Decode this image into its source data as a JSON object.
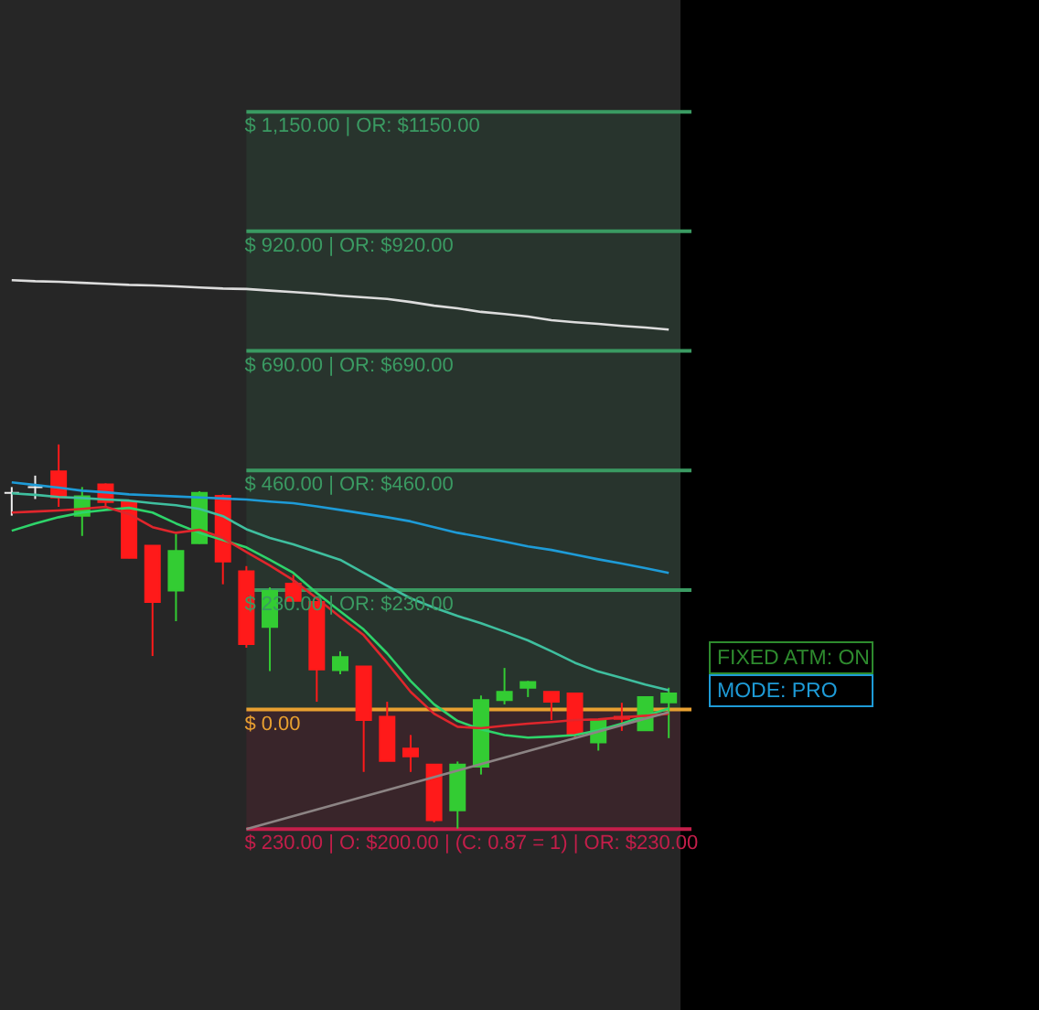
{
  "chart_data": {
    "type": "candlestick",
    "ylim": [
      -578,
      1365
    ],
    "categories": [
      null,
      null,
      null,
      null,
      null,
      null,
      null,
      null,
      null,
      null,
      null,
      null,
      null,
      null,
      null,
      null,
      null,
      null,
      null,
      null,
      null,
      null,
      null,
      null,
      null,
      null,
      null,
      null,
      null
    ],
    "ohlc": [
      [
        417,
        428,
        373,
        417
      ],
      [
        428,
        450,
        405,
        428
      ],
      [
        458,
        510,
        390,
        408
      ],
      [
        373,
        428,
        334,
        410
      ],
      [
        433,
        435,
        391,
        399
      ],
      [
        400,
        404,
        291,
        292
      ],
      [
        315,
        316,
        103,
        207
      ],
      [
        229,
        338,
        170,
        305
      ],
      [
        320,
        420,
        319,
        417
      ],
      [
        411,
        414,
        241,
        285
      ],
      [
        266,
        276,
        119,
        126
      ],
      [
        159,
        235,
        74,
        228
      ],
      [
        242,
        259,
        209,
        209
      ],
      [
        207,
        207,
        15,
        77
      ],
      [
        76,
        112,
        68,
        101
      ],
      [
        83,
        83,
        -120,
        -20
      ],
      [
        -14,
        15,
        -99,
        -99
      ],
      [
        -75,
        -49,
        -120,
        -90
      ],
      [
        -106,
        -106,
        -217,
        -213
      ],
      [
        -194,
        -100,
        -229,
        -106
      ],
      [
        -110,
        27,
        -125,
        18
      ],
      [
        18,
        80,
        10,
        34
      ],
      [
        42,
        55,
        24,
        53
      ],
      [
        34,
        34,
        -20,
        15
      ],
      [
        31,
        31,
        -55,
        -47
      ],
      [
        -63,
        -20,
        -79,
        -20
      ],
      [
        -14,
        13,
        -41,
        -18
      ],
      [
        -40,
        24,
        -40,
        24
      ],
      [
        14,
        42,
        -55,
        31
      ]
    ],
    "colors": [
      "#f0f0f0",
      "#f0f0f0",
      "#ff1a1a",
      "#33cc33",
      "#ff1a1a",
      "#ff1a1a",
      "#ff1a1a",
      "#33cc33",
      "#33cc33",
      "#ff1a1a",
      "#ff1a1a",
      "#33cc33",
      "#ff1a1a",
      "#ff1a1a",
      "#33cc33",
      "#ff1a1a",
      "#ff1a1a",
      "#ff1a1a",
      "#ff1a1a",
      "#33cc33",
      "#33cc33",
      "#33cc33",
      "#33cc33",
      "#ff1a1a",
      "#ff1a1a",
      "#33cc33",
      "#ff1a1a",
      "#33cc33",
      "#33cc33"
    ],
    "series": [
      {
        "type": "line",
        "color": "#dcdcdc",
        "values": [
          826,
          824,
          823,
          821,
          819,
          817,
          816,
          814,
          812,
          810,
          809,
          806,
          803,
          800,
          796,
          793,
          790,
          784,
          777,
          772,
          765,
          761,
          756,
          749,
          745,
          742,
          738,
          735,
          731
        ]
      },
      {
        "type": "line",
        "color": "#1e9bd7",
        "values": [
          437,
          432,
          427,
          421,
          418,
          414,
          412,
          410,
          408,
          406,
          404,
          400,
          397,
          391,
          384,
          377,
          370,
          362,
          351,
          340,
          332,
          323,
          314,
          307,
          298,
          289,
          281,
          272,
          263
        ]
      },
      {
        "type": "line",
        "color": "#3fbf9f",
        "values": [
          416,
          413,
          409,
          407,
          404,
          402,
          397,
          393,
          386,
          372,
          347,
          330,
          318,
          303,
          288,
          263,
          238,
          214,
          196,
          180,
          166,
          150,
          133,
          112,
          90,
          73,
          61,
          48,
          37
        ]
      },
      {
        "type": "line",
        "color": "#2ed46a",
        "values": [
          344,
          358,
          370,
          379,
          384,
          388,
          379,
          358,
          340,
          326,
          312,
          288,
          263,
          224,
          189,
          154,
          108,
          55,
          10,
          -22,
          -38,
          -49,
          -54,
          -52,
          -49,
          -40,
          -27,
          -12,
          2
        ]
      },
      {
        "type": "line",
        "color": "#e0262c",
        "values": [
          379,
          381,
          383,
          386,
          390,
          376,
          351,
          340,
          346,
          330,
          303,
          277,
          249,
          214,
          178,
          143,
          90,
          34,
          -8,
          -33,
          -36,
          -31,
          -27,
          -24,
          -20,
          -19,
          -15,
          -12,
          -8
        ]
      },
      {
        "type": "line",
        "color": "#8c8484",
        "values": [
          null,
          null,
          null,
          null,
          null,
          null,
          null,
          null,
          null,
          null,
          -230,
          null,
          null,
          null,
          null,
          null,
          null,
          null,
          null,
          null,
          null,
          null,
          null,
          null,
          null,
          null,
          null,
          null,
          -5
        ]
      }
    ],
    "bands": [
      {
        "axis": "y",
        "from": 0,
        "to": 1150,
        "color": "#3a9a62"
      },
      {
        "axis": "y",
        "from": -230,
        "to": 0,
        "color": "#c41e4a",
        "label": "$ 230.00 | O: $200.00 | (C: 0.87 = 1) | OR: $230.00"
      }
    ],
    "ref_lines": [
      {
        "axis": "y",
        "value": 1150,
        "label": "$ 1,150.00 | OR: $1150.00",
        "color": "#3a9a62"
      },
      {
        "axis": "y",
        "value": 920,
        "label": "$ 920.00 | OR: $920.00",
        "color": "#3a9a62"
      },
      {
        "axis": "y",
        "value": 690,
        "label": "$ 690.00 | OR: $690.00",
        "color": "#3a9a62"
      },
      {
        "axis": "y",
        "value": 460,
        "label": "$ 460.00 | OR: $460.00",
        "color": "#3a9a62"
      },
      {
        "axis": "y",
        "value": 230,
        "label": "$ 230.00 | OR: $230.00",
        "color": "#3a9a62"
      },
      {
        "axis": "y",
        "value": 0,
        "label": "$ 0.00",
        "color": "#e8a030"
      },
      {
        "axis": "y",
        "value": -230,
        "color": "#c41e4a"
      }
    ],
    "annotations": [
      "FIXED ATM: ON",
      "MODE: PRO"
    ]
  }
}
